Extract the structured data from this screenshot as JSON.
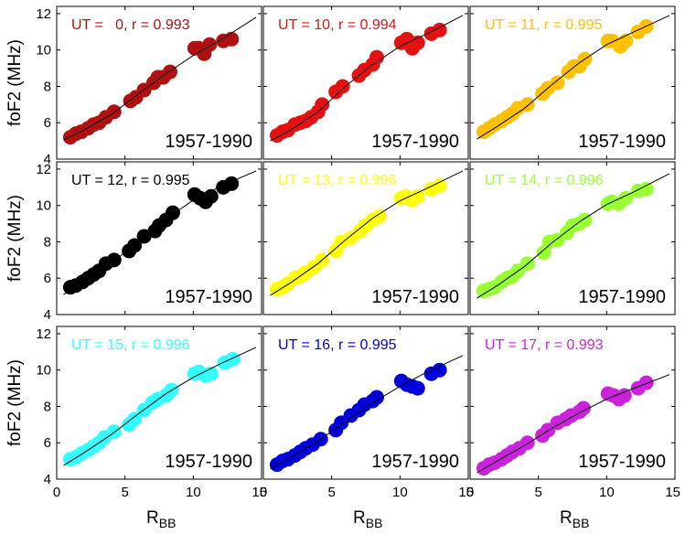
{
  "chart_data": [
    {
      "type": "scatter",
      "annotation": "UT =   0, r = 0.993",
      "period": "1957-1990",
      "color": "#b01010",
      "xlabel": "R",
      "xlabel_sub": "BB",
      "ylabel": "foF2 (MHz)",
      "xlim": [
        0,
        15
      ],
      "ylim": [
        4,
        12.4
      ],
      "xticks": [
        "0",
        "5",
        "10",
        "15"
      ],
      "yticks": [
        "4",
        "6",
        "8",
        "10",
        "12"
      ],
      "points": [
        [
          1.0,
          5.2
        ],
        [
          1.4,
          5.4
        ],
        [
          1.8,
          5.5
        ],
        [
          2.3,
          5.7
        ],
        [
          2.7,
          5.9
        ],
        [
          3.1,
          6.0
        ],
        [
          3.6,
          6.3
        ],
        [
          4.2,
          6.6
        ],
        [
          5.4,
          7.2
        ],
        [
          5.8,
          7.4
        ],
        [
          6.4,
          7.8
        ],
        [
          7.1,
          8.2
        ],
        [
          7.4,
          8.5
        ],
        [
          7.8,
          8.5
        ],
        [
          8.3,
          8.8
        ],
        [
          10.1,
          10.1
        ],
        [
          10.4,
          10.1
        ],
        [
          10.8,
          9.8
        ],
        [
          11.2,
          10.3
        ],
        [
          12.2,
          10.5
        ],
        [
          12.8,
          10.6
        ]
      ],
      "fit": [
        [
          0.5,
          5.05
        ],
        [
          2,
          5.6
        ],
        [
          4,
          6.45
        ],
        [
          6,
          7.6
        ],
        [
          8,
          8.7
        ],
        [
          10,
          9.7
        ],
        [
          12,
          10.55
        ],
        [
          14.6,
          11.8
        ]
      ]
    },
    {
      "type": "scatter",
      "annotation": "UT = 10, r = 0.994",
      "period": "1957-1990",
      "color": "#e51010",
      "xlabel": "R",
      "xlabel_sub": "BB",
      "ylabel": "",
      "xlim": [
        0,
        15
      ],
      "ylim": [
        4,
        12.4
      ],
      "xticks": [
        "0",
        "5",
        "10",
        "15"
      ],
      "yticks": [],
      "points": [
        [
          1.0,
          5.3
        ],
        [
          1.4,
          5.5
        ],
        [
          1.8,
          5.6
        ],
        [
          2.3,
          5.9
        ],
        [
          2.7,
          6.0
        ],
        [
          3.1,
          6.1
        ],
        [
          3.5,
          6.3
        ],
        [
          4.0,
          6.6
        ],
        [
          4.3,
          7.0
        ],
        [
          5.3,
          7.7
        ],
        [
          5.8,
          8.0
        ],
        [
          7.0,
          8.6
        ],
        [
          7.4,
          8.9
        ],
        [
          8.0,
          9.2
        ],
        [
          8.3,
          9.6
        ],
        [
          10.1,
          10.4
        ],
        [
          10.5,
          10.6
        ],
        [
          10.9,
          10.1
        ],
        [
          11.3,
          10.4
        ],
        [
          12.3,
          10.9
        ],
        [
          12.9,
          11.1
        ]
      ],
      "fit": [
        [
          0.5,
          5.0
        ],
        [
          2,
          5.6
        ],
        [
          4,
          6.6
        ],
        [
          6,
          8.0
        ],
        [
          8,
          9.2
        ],
        [
          10,
          10.2
        ],
        [
          12,
          10.9
        ],
        [
          14.6,
          11.9
        ]
      ]
    },
    {
      "type": "scatter",
      "annotation": "UT = 11, r = 0.995",
      "period": "1957-1990",
      "color": "#ffc000",
      "xlabel": "R",
      "xlabel_sub": "BB",
      "ylabel": "",
      "xlim": [
        0,
        15
      ],
      "ylim": [
        4,
        12.4
      ],
      "xticks": [
        "0",
        "5",
        "10",
        "15"
      ],
      "yticks": [],
      "points": [
        [
          1.0,
          5.5
        ],
        [
          1.4,
          5.7
        ],
        [
          1.8,
          5.9
        ],
        [
          2.3,
          6.1
        ],
        [
          2.7,
          6.3
        ],
        [
          3.1,
          6.5
        ],
        [
          3.5,
          6.8
        ],
        [
          4.2,
          7.0
        ],
        [
          5.3,
          7.6
        ],
        [
          5.7,
          7.9
        ],
        [
          6.4,
          8.2
        ],
        [
          7.2,
          8.8
        ],
        [
          7.6,
          9.1
        ],
        [
          8.0,
          9.1
        ],
        [
          8.4,
          9.5
        ],
        [
          10.1,
          10.5
        ],
        [
          10.4,
          10.5
        ],
        [
          11.0,
          10.2
        ],
        [
          11.4,
          10.5
        ],
        [
          12.3,
          11.0
        ],
        [
          12.9,
          11.3
        ]
      ],
      "fit": [
        [
          0.5,
          5.1
        ],
        [
          2,
          5.8
        ],
        [
          4,
          6.8
        ],
        [
          6,
          8.1
        ],
        [
          8,
          9.3
        ],
        [
          10,
          10.3
        ],
        [
          12,
          11.0
        ],
        [
          14.6,
          11.9
        ]
      ]
    },
    {
      "type": "scatter",
      "annotation": "UT = 12, r = 0.995",
      "period": "1957-1990",
      "color": "#000000",
      "xlabel": "R",
      "xlabel_sub": "BB",
      "ylabel": "foF2 (MHz)",
      "xlim": [
        0,
        15
      ],
      "ylim": [
        4,
        12.4
      ],
      "xticks": [
        "0",
        "5",
        "10",
        "15"
      ],
      "yticks": [
        "4",
        "6",
        "8",
        "10",
        "12"
      ],
      "points": [
        [
          1.0,
          5.5
        ],
        [
          1.4,
          5.6
        ],
        [
          1.9,
          5.8
        ],
        [
          2.3,
          6.0
        ],
        [
          2.7,
          6.2
        ],
        [
          3.1,
          6.4
        ],
        [
          3.6,
          6.8
        ],
        [
          4.2,
          7.0
        ],
        [
          5.3,
          7.5
        ],
        [
          5.7,
          7.8
        ],
        [
          6.4,
          8.3
        ],
        [
          7.2,
          8.6
        ],
        [
          7.5,
          8.9
        ],
        [
          8.0,
          9.2
        ],
        [
          8.5,
          9.6
        ],
        [
          10.1,
          10.6
        ],
        [
          10.5,
          10.4
        ],
        [
          10.9,
          10.2
        ],
        [
          11.3,
          10.5
        ],
        [
          12.2,
          11.0
        ],
        [
          12.8,
          11.2
        ]
      ],
      "fit": [
        [
          0.5,
          5.1
        ],
        [
          2,
          5.8
        ],
        [
          4,
          6.8
        ],
        [
          6,
          8.05
        ],
        [
          8,
          9.25
        ],
        [
          10,
          10.3
        ],
        [
          12,
          11.05
        ],
        [
          14.6,
          11.9
        ]
      ]
    },
    {
      "type": "scatter",
      "annotation": "UT = 13, r = 0.996",
      "period": "1957-1990",
      "color": "#ffff00",
      "xlabel": "R",
      "xlabel_sub": "BB",
      "ylabel": "",
      "xlim": [
        0,
        15
      ],
      "ylim": [
        4,
        12.4
      ],
      "xticks": [
        "0",
        "5",
        "10",
        "15"
      ],
      "yticks": [],
      "points": [
        [
          1.0,
          5.4
        ],
        [
          1.4,
          5.5
        ],
        [
          1.8,
          5.7
        ],
        [
          2.3,
          6.0
        ],
        [
          2.7,
          6.1
        ],
        [
          3.1,
          6.3
        ],
        [
          3.7,
          6.6
        ],
        [
          4.3,
          7.0
        ],
        [
          5.3,
          7.5
        ],
        [
          5.7,
          8.0
        ],
        [
          6.4,
          8.2
        ],
        [
          7.1,
          8.6
        ],
        [
          7.5,
          8.9
        ],
        [
          8.0,
          9.2
        ],
        [
          8.5,
          9.4
        ],
        [
          10.1,
          10.4
        ],
        [
          10.4,
          10.5
        ],
        [
          10.9,
          10.3
        ],
        [
          11.3,
          10.5
        ],
        [
          12.3,
          10.9
        ],
        [
          12.9,
          11.1
        ]
      ],
      "fit": [
        [
          0.5,
          5.05
        ],
        [
          2,
          5.75
        ],
        [
          4,
          6.8
        ],
        [
          6,
          8.1
        ],
        [
          8,
          9.3
        ],
        [
          10,
          10.25
        ],
        [
          12,
          10.95
        ],
        [
          14.6,
          11.9
        ]
      ]
    },
    {
      "type": "scatter",
      "annotation": "UT = 14, r = 0.996",
      "period": "1957-1990",
      "color": "#99ff33",
      "xlabel": "R",
      "xlabel_sub": "BB",
      "ylabel": "",
      "xlim": [
        0,
        15
      ],
      "ylim": [
        4,
        12.4
      ],
      "xticks": [
        "0",
        "5",
        "10",
        "15"
      ],
      "yticks": [],
      "points": [
        [
          1.0,
          5.3
        ],
        [
          1.4,
          5.4
        ],
        [
          1.8,
          5.5
        ],
        [
          2.3,
          5.8
        ],
        [
          2.7,
          6.0
        ],
        [
          3.1,
          6.1
        ],
        [
          3.5,
          6.4
        ],
        [
          4.2,
          6.8
        ],
        [
          5.4,
          7.4
        ],
        [
          5.8,
          8.0
        ],
        [
          6.4,
          8.1
        ],
        [
          7.1,
          8.5
        ],
        [
          7.5,
          8.9
        ],
        [
          8.0,
          9.0
        ],
        [
          8.4,
          9.2
        ],
        [
          10.1,
          10.1
        ],
        [
          10.4,
          10.2
        ],
        [
          10.9,
          10.1
        ],
        [
          11.4,
          10.4
        ],
        [
          12.3,
          10.8
        ],
        [
          12.9,
          10.9
        ]
      ],
      "fit": [
        [
          0.5,
          4.9
        ],
        [
          2,
          5.6
        ],
        [
          4,
          6.65
        ],
        [
          6,
          7.95
        ],
        [
          8,
          9.1
        ],
        [
          10,
          10.05
        ],
        [
          12,
          10.75
        ],
        [
          14.6,
          11.75
        ]
      ]
    },
    {
      "type": "scatter",
      "annotation": "UT = 15, r = 0.996",
      "period": "1957-1990",
      "color": "#33ffff",
      "xlabel": "R",
      "xlabel_sub": "BB",
      "ylabel": "foF2 (MHz)",
      "xlim": [
        0,
        15
      ],
      "ylim": [
        4,
        12.4
      ],
      "xticks": [
        "0",
        "5",
        "10",
        "15"
      ],
      "yticks": [
        "4",
        "6",
        "8",
        "10",
        "12"
      ],
      "points": [
        [
          1.0,
          5.1
        ],
        [
          1.4,
          5.2
        ],
        [
          1.8,
          5.4
        ],
        [
          2.3,
          5.6
        ],
        [
          2.7,
          5.8
        ],
        [
          3.1,
          6.0
        ],
        [
          3.5,
          6.3
        ],
        [
          4.2,
          6.6
        ],
        [
          5.3,
          7.0
        ],
        [
          5.7,
          7.3
        ],
        [
          6.4,
          7.8
        ],
        [
          7.0,
          8.2
        ],
        [
          7.4,
          8.4
        ],
        [
          8.0,
          8.6
        ],
        [
          8.4,
          8.9
        ],
        [
          10.1,
          9.8
        ],
        [
          10.4,
          9.9
        ],
        [
          10.9,
          9.7
        ],
        [
          11.3,
          9.8
        ],
        [
          12.3,
          10.4
        ],
        [
          12.9,
          10.6
        ]
      ],
      "fit": [
        [
          0.5,
          4.75
        ],
        [
          2,
          5.45
        ],
        [
          4,
          6.45
        ],
        [
          6,
          7.6
        ],
        [
          8,
          8.7
        ],
        [
          10,
          9.6
        ],
        [
          12,
          10.35
        ],
        [
          14.6,
          11.25
        ]
      ]
    },
    {
      "type": "scatter",
      "annotation": "UT = 16, r = 0.995",
      "period": "1957-1990",
      "color": "#0000dd",
      "xlabel": "R",
      "xlabel_sub": "BB",
      "ylabel": "",
      "xlim": [
        0,
        15
      ],
      "ylim": [
        4,
        12.4
      ],
      "xticks": [
        "0",
        "5",
        "10",
        "15"
      ],
      "yticks": [],
      "points": [
        [
          1.0,
          4.8
        ],
        [
          1.4,
          5.0
        ],
        [
          1.8,
          5.1
        ],
        [
          2.3,
          5.3
        ],
        [
          2.7,
          5.5
        ],
        [
          3.1,
          5.7
        ],
        [
          3.6,
          5.9
        ],
        [
          4.2,
          6.2
        ],
        [
          5.3,
          6.7
        ],
        [
          5.7,
          7.1
        ],
        [
          6.4,
          7.5
        ],
        [
          7.0,
          7.8
        ],
        [
          7.4,
          8.1
        ],
        [
          8.0,
          8.3
        ],
        [
          8.3,
          8.5
        ],
        [
          10.1,
          9.4
        ],
        [
          10.5,
          9.2
        ],
        [
          10.9,
          9.1
        ],
        [
          11.3,
          9.0
        ],
        [
          12.3,
          9.8
        ],
        [
          12.9,
          10.0
        ]
      ],
      "fit": [
        [
          0.5,
          4.55
        ],
        [
          2,
          5.2
        ],
        [
          4,
          6.1
        ],
        [
          6,
          7.15
        ],
        [
          8,
          8.2
        ],
        [
          10,
          9.1
        ],
        [
          12,
          9.9
        ],
        [
          14.6,
          10.8
        ]
      ]
    },
    {
      "type": "scatter",
      "annotation": "UT = 17, r = 0.993",
      "period": "1957-1990",
      "color": "#cc22dd",
      "xlabel": "R",
      "xlabel_sub": "BB",
      "ylabel": "",
      "xlim": [
        0,
        15
      ],
      "ylim": [
        4,
        12.4
      ],
      "xticks": [
        "0",
        "5",
        "10",
        "15"
      ],
      "yticks": [],
      "points": [
        [
          1.0,
          4.6
        ],
        [
          1.4,
          4.8
        ],
        [
          1.8,
          4.9
        ],
        [
          2.3,
          5.1
        ],
        [
          2.7,
          5.3
        ],
        [
          3.1,
          5.5
        ],
        [
          3.6,
          5.7
        ],
        [
          4.2,
          6.0
        ],
        [
          5.3,
          6.4
        ],
        [
          5.7,
          6.7
        ],
        [
          6.4,
          7.1
        ],
        [
          7.0,
          7.3
        ],
        [
          7.4,
          7.5
        ],
        [
          8.0,
          7.7
        ],
        [
          8.3,
          7.9
        ],
        [
          10.1,
          8.7
        ],
        [
          10.5,
          8.6
        ],
        [
          10.9,
          8.4
        ],
        [
          11.3,
          8.6
        ],
        [
          12.3,
          9.0
        ],
        [
          12.9,
          9.3
        ]
      ],
      "fit": [
        [
          0.5,
          4.35
        ],
        [
          2,
          5.0
        ],
        [
          4,
          5.85
        ],
        [
          6,
          6.8
        ],
        [
          8,
          7.65
        ],
        [
          10,
          8.4
        ],
        [
          12,
          9.0
        ],
        [
          14.6,
          9.75
        ]
      ]
    }
  ]
}
